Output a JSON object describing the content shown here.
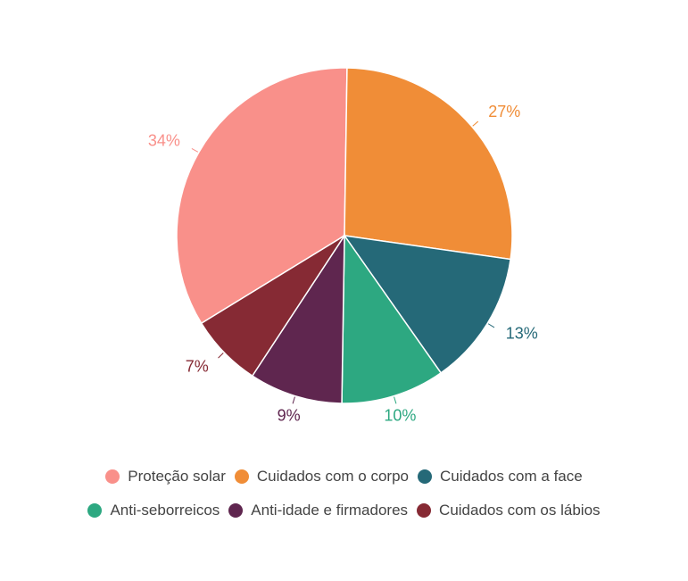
{
  "chart_data": {
    "type": "pie",
    "title": "",
    "categories": [
      "Proteção solar",
      "Cuidados com o corpo",
      "Cuidados com a face",
      "Anti-seborreicos",
      "Anti-idade e firmadores",
      "Cuidados com os lábios"
    ],
    "values": [
      34,
      27,
      13,
      10,
      9,
      7
    ],
    "data_labels": [
      "34%",
      "27%",
      "13%",
      "10%",
      "9%",
      "7%"
    ],
    "colors": [
      "#F9908A",
      "#F08D37",
      "#256978",
      "#2DA881",
      "#5F264F",
      "#862A34"
    ],
    "legend_position": "bottom"
  }
}
